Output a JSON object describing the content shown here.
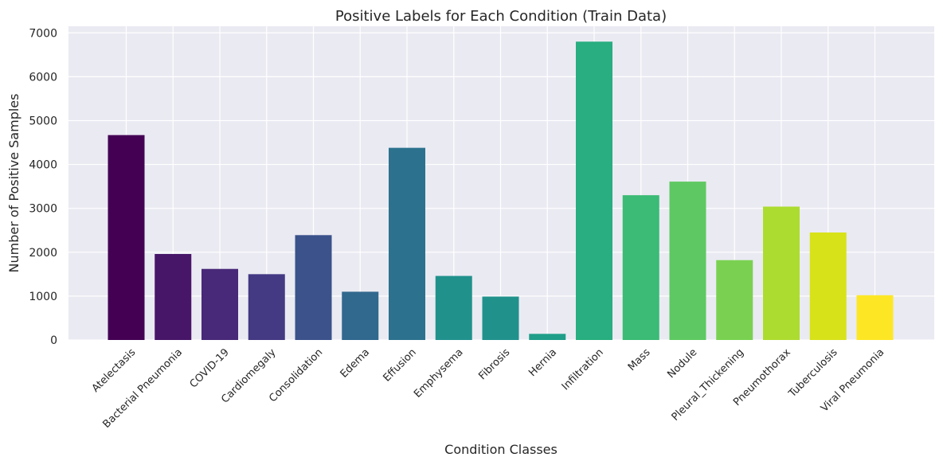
{
  "chart_data": {
    "type": "bar",
    "title": "Positive Labels for Each Condition (Train Data)",
    "xlabel": "Condition Classes",
    "ylabel": "Number of Positive Samples",
    "ylim": [
      0,
      7150
    ],
    "yticks": [
      0,
      1000,
      2000,
      3000,
      4000,
      5000,
      6000,
      7000
    ],
    "grid": true,
    "background_color": "#eaeaf2",
    "colormap": "viridis",
    "categories": [
      "Atelectasis",
      "Bacterial Pneumonia",
      "COVID-19",
      "Cardiomegaly",
      "Consolidation",
      "Edema",
      "Effusion",
      "Emphysema",
      "Fibrosis",
      "Hernia",
      "Infiltration",
      "Mass",
      "Nodule",
      "Pleural_Thickening",
      "Pneumothorax",
      "Tuberculosis",
      "Viral Pneumonia"
    ],
    "values": [
      4670,
      1960,
      1620,
      1500,
      2390,
      1100,
      4380,
      1460,
      990,
      140,
      6800,
      3300,
      3610,
      1820,
      3040,
      2450,
      1020
    ],
    "colors": [
      "#440154",
      "#481668",
      "#482878",
      "#443983",
      "#3b528b",
      "#31688e",
      "#2c728e",
      "#21918c",
      "#21918c",
      "#1f9e89",
      "#28ae80",
      "#3bbb75",
      "#5ec962",
      "#7ad151",
      "#addc30",
      "#d8e219",
      "#fde725"
    ]
  }
}
